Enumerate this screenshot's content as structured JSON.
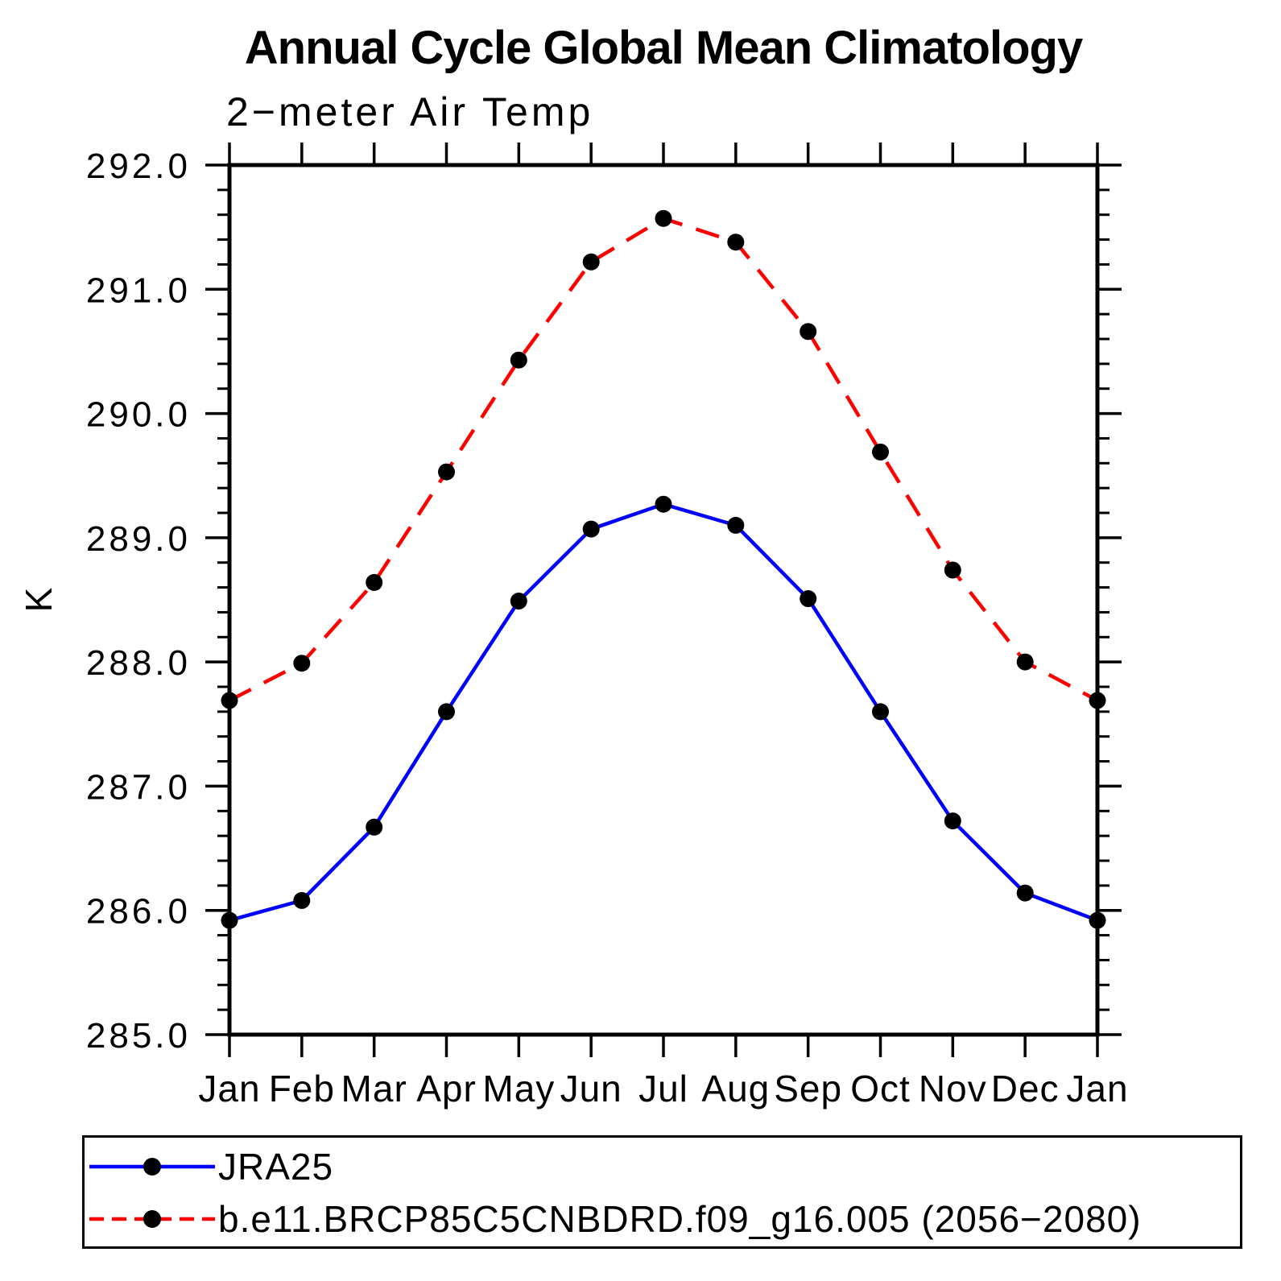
{
  "chart": {
    "title": "Annual Cycle Global Mean Climatology",
    "subtitle": "2−meter Air Temp",
    "ylabel": "K"
  },
  "chart_data": {
    "type": "line",
    "title": "Annual Cycle Global Mean Climatology",
    "subtitle": "2−meter Air Temp",
    "ylabel": "K",
    "xlabel": "",
    "categories": [
      "Jan",
      "Feb",
      "Mar",
      "Apr",
      "May",
      "Jun",
      "Jul",
      "Aug",
      "Sep",
      "Oct",
      "Nov",
      "Dec",
      "Jan"
    ],
    "series": [
      {
        "name": "JRA25",
        "color": "#0000ff",
        "line_style": "solid",
        "marker": "circle",
        "marker_color": "#000000",
        "values": [
          285.92,
          286.08,
          286.67,
          287.6,
          288.49,
          289.07,
          289.27,
          289.1,
          288.51,
          287.6,
          286.72,
          286.14,
          285.92
        ]
      },
      {
        "name": "b.e11.BRCP85C5CNBDRD.f09_g16.005 (2056−2080)",
        "color": "#ff0000",
        "line_style": "dashed",
        "marker": "circle",
        "marker_color": "#000000",
        "values": [
          287.69,
          287.99,
          288.64,
          289.53,
          290.43,
          291.22,
          291.57,
          291.38,
          290.66,
          289.69,
          288.74,
          288.0,
          287.69
        ]
      }
    ],
    "ylim": [
      285.0,
      292.0
    ],
    "ytick_interval": 1.0,
    "ytick_minor_interval": 0.2,
    "ytick_labels": [
      "285.0",
      "286.0",
      "287.0",
      "288.0",
      "289.0",
      "290.0",
      "291.0",
      "292.0"
    ],
    "grid": false,
    "legend_position": "bottom",
    "axis_color": "#000000"
  }
}
